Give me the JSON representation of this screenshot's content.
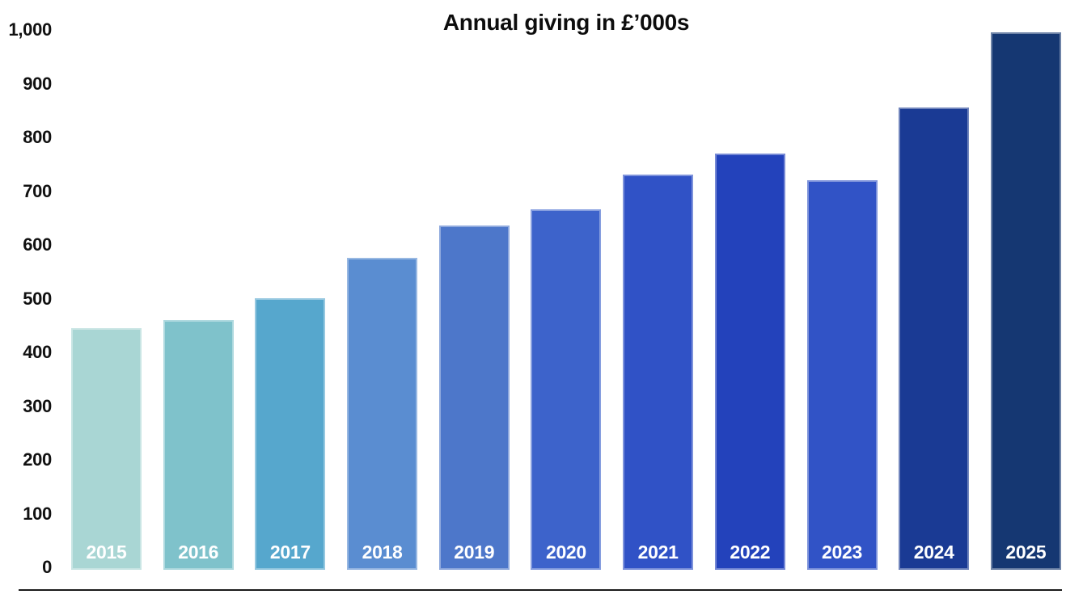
{
  "page": {
    "background": "#ffffff"
  },
  "chart_data": {
    "type": "bar",
    "title": "Annual giving in £’000s",
    "categories": [
      "2015",
      "2016",
      "2017",
      "2018",
      "2019",
      "2020",
      "2021",
      "2022",
      "2023",
      "2024",
      "2025"
    ],
    "values": [
      450,
      465,
      505,
      580,
      640,
      670,
      735,
      775,
      725,
      860,
      1000
    ],
    "bar_colors": [
      "#a9d6d4",
      "#7fc2cb",
      "#56a7cd",
      "#5a8dd1",
      "#4d77ca",
      "#3d63cb",
      "#3052c6",
      "#2342bb",
      "#3153c6",
      "#1a3a94",
      "#153772"
    ],
    "bar_label_color": "#ffffff",
    "xlabel": "",
    "ylabel": "",
    "ylim": [
      0,
      1000
    ],
    "yticks": [
      {
        "value": 0,
        "label": "0"
      },
      {
        "value": 100,
        "label": "100"
      },
      {
        "value": 200,
        "label": "200"
      },
      {
        "value": 300,
        "label": "300"
      },
      {
        "value": 400,
        "label": "400"
      },
      {
        "value": 500,
        "label": "500"
      },
      {
        "value": 600,
        "label": "600"
      },
      {
        "value": 700,
        "label": "700"
      },
      {
        "value": 800,
        "label": "800"
      },
      {
        "value": 900,
        "label": "900"
      },
      {
        "value": 1000,
        "label": "1,000"
      }
    ],
    "grid": false,
    "legend": false,
    "axis_text_color": "#111111",
    "baseline_rule_color": "#1a1a1a"
  }
}
